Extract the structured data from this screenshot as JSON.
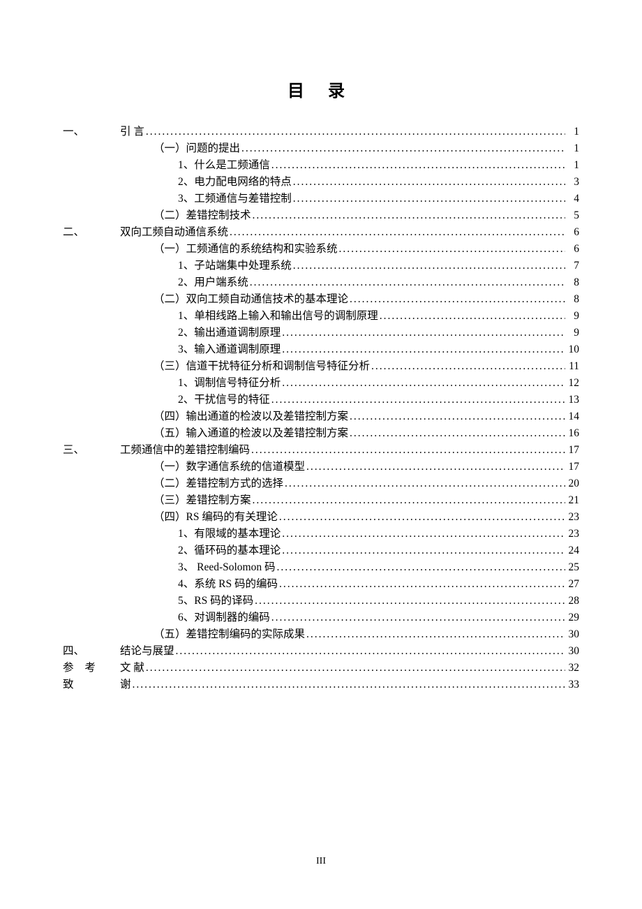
{
  "title": "目 录",
  "footer": "III",
  "leader_char": ".",
  "toc": [
    {
      "level": 0,
      "label": "一、",
      "title": "引 言",
      "page": "1"
    },
    {
      "level": 1,
      "label": "",
      "title": "（一）问题的提出",
      "page": "1"
    },
    {
      "level": 2,
      "label": "",
      "title": "1、什么是工频通信",
      "page": "1"
    },
    {
      "level": 2,
      "label": "",
      "title": "2、电力配电网络的特点",
      "page": "3"
    },
    {
      "level": 2,
      "label": "",
      "title": "3、工频通信与差错控制",
      "page": "4"
    },
    {
      "level": 1,
      "label": "",
      "title": "（二）差错控制技术",
      "page": "5"
    },
    {
      "level": 0,
      "label": "二、",
      "title": "双向工频自动通信系统",
      "page": "6"
    },
    {
      "level": 1,
      "label": "",
      "title": "（一）工频通信的系统结构和实验系统",
      "page": "6"
    },
    {
      "level": 2,
      "label": "",
      "title": "1、子站端集中处理系统",
      "page": "7"
    },
    {
      "level": 2,
      "label": "",
      "title": "2、用户端系统",
      "page": "8"
    },
    {
      "level": 1,
      "label": "",
      "title": "（二）双向工频自动通信技术的基本理论",
      "page": "8"
    },
    {
      "level": 2,
      "label": "",
      "title": "1、单相线路上输入和输出信号的调制原理",
      "page": "9"
    },
    {
      "level": 2,
      "label": "",
      "title": "2、输出通道调制原理",
      "page": "9"
    },
    {
      "level": 2,
      "label": "",
      "title": "3、输入通道调制原理",
      "page": "10"
    },
    {
      "level": 1,
      "label": "",
      "title": "（三）信道干扰特征分析和调制信号特征分析",
      "page": "11"
    },
    {
      "level": 2,
      "label": "",
      "title": "1、调制信号特征分析",
      "page": "12"
    },
    {
      "level": 2,
      "label": "",
      "title": "2、干扰信号的特征",
      "page": "13"
    },
    {
      "level": 1,
      "label": "",
      "title": "（四）输出通道的检波以及差错控制方案",
      "page": "14"
    },
    {
      "level": 1,
      "label": "",
      "title": "（五）输入通道的检波以及差错控制方案",
      "page": "16"
    },
    {
      "level": 0,
      "label": "三、",
      "title": "工频通信中的差错控制编码",
      "page": "17"
    },
    {
      "level": 1,
      "label": "",
      "title": "（一）数字通信系统的信道模型",
      "page": "17"
    },
    {
      "level": 1,
      "label": "",
      "title": "（二）差错控制方式的选择",
      "page": "20"
    },
    {
      "level": 1,
      "label": "",
      "title": "（三）差错控制方案",
      "page": "21"
    },
    {
      "level": 1,
      "label": "",
      "title": "（四）RS 编码的有关理论",
      "page": "23"
    },
    {
      "level": 2,
      "label": "",
      "title": "1、有限域的基本理论",
      "page": "23"
    },
    {
      "level": 2,
      "label": "",
      "title": "2、循环码的基本理论",
      "page": "24"
    },
    {
      "level": 2,
      "label": "",
      "title": "3、 Reed-Solomon 码",
      "page": "25"
    },
    {
      "level": 2,
      "label": "",
      "title": "4、系统 RS 码的编码",
      "page": "27"
    },
    {
      "level": 2,
      "label": "",
      "title": "5、RS 码的译码",
      "page": "28"
    },
    {
      "level": 2,
      "label": "",
      "title": "6、对调制器的编码",
      "page": "29"
    },
    {
      "level": 1,
      "label": "",
      "title": "（五）差错控制编码的实际成果",
      "page": "30"
    },
    {
      "level": 0,
      "label": "四、",
      "title": "结论与展望",
      "page": "30"
    },
    {
      "level": 0,
      "label": "参 考",
      "title": "文 献",
      "page": "32",
      "label_wide": true
    },
    {
      "level": 0,
      "label": "致",
      "title": "谢",
      "page": "33"
    }
  ]
}
